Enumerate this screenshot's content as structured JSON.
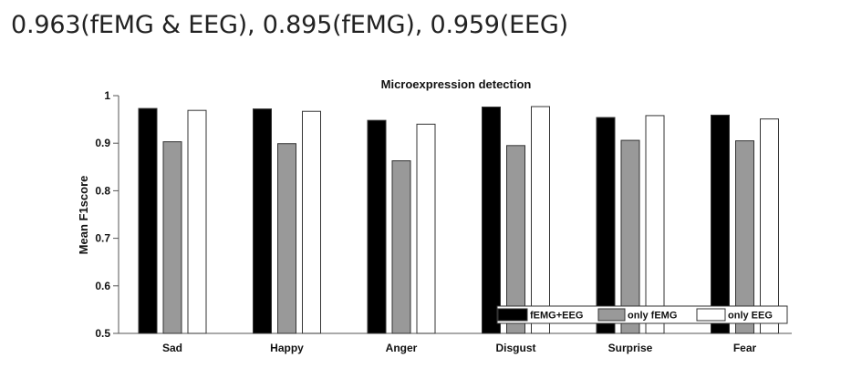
{
  "heading": "0.963(fEMG & EEG), 0.895(fEMG), 0.959(EEG)",
  "chart_data": {
    "type": "bar",
    "title": "Microexpression detection",
    "xlabel": "",
    "ylabel": "Mean F1score",
    "ylim": [
      0.5,
      1
    ],
    "yticks": [
      0.5,
      0.6,
      0.7,
      0.8,
      0.9,
      1
    ],
    "ytick_labels": [
      "0.5",
      "0.6",
      "0.7",
      "0.8",
      "0.9",
      "1"
    ],
    "categories": [
      "Sad",
      "Happy",
      "Anger",
      "Disgust",
      "Surprise",
      "Fear"
    ],
    "series": [
      {
        "name": "fEMG+EEG",
        "color": "#000000",
        "values": [
          0.973,
          0.972,
          0.948,
          0.976,
          0.954,
          0.959
        ]
      },
      {
        "name": "only fEMG",
        "color": "#999999",
        "values": [
          0.903,
          0.899,
          0.863,
          0.895,
          0.906,
          0.905
        ]
      },
      {
        "name": "only EEG",
        "color": "#ffffff",
        "values": [
          0.969,
          0.967,
          0.94,
          0.977,
          0.958,
          0.951
        ]
      }
    ],
    "legend_position": "bottom-right",
    "grid": false
  }
}
